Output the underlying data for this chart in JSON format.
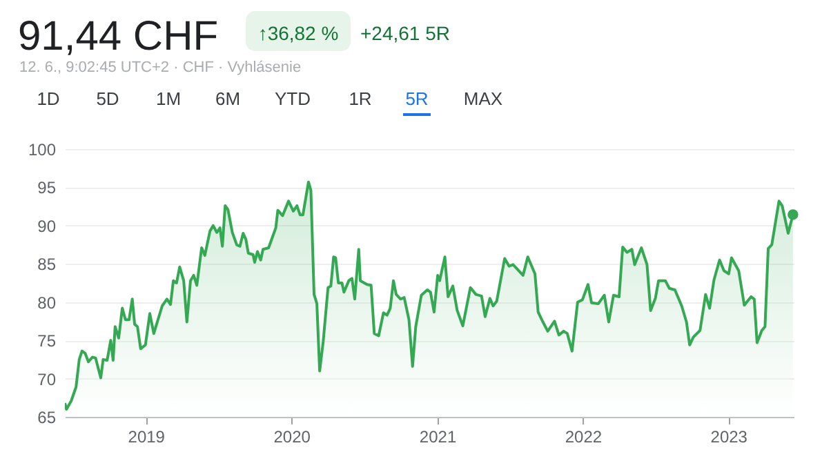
{
  "chart_data": {
    "type": "area",
    "title": "91,44 CHF",
    "annotations": [
      "↑36,82 %",
      "+24,61 5R",
      "12. 6., 9:02:45 UTC+2 · CHF · Vyhlásenie",
      "1D",
      "5D",
      "1M",
      "6M",
      "YTD",
      "1R",
      "5R",
      "MAX"
    ],
    "xlim": [
      "2018-06-12",
      "2023-06-14"
    ],
    "xticks": [
      {
        "value": "2019-01-01",
        "label": "2019"
      },
      {
        "value": "2020-01-01",
        "label": "2020"
      },
      {
        "value": "2021-01-01",
        "label": "2021"
      },
      {
        "value": "2022-01-01",
        "label": "2022"
      },
      {
        "value": "2023-01-01",
        "label": "2023"
      }
    ],
    "ylim": [
      65,
      100
    ],
    "yticks": [
      65,
      70,
      75,
      80,
      85,
      90,
      95,
      100
    ],
    "grid": "y",
    "series": [
      {
        "color": "#34a853",
        "x": [
          "2018-06-12",
          "2018-06-16",
          "2018-06-28",
          "2018-07-10",
          "2018-07-18",
          "2018-07-25",
          "2018-08-02",
          "2018-08-10",
          "2018-08-20",
          "2018-08-28",
          "2018-09-04",
          "2018-09-10",
          "2018-09-16",
          "2018-09-26",
          "2018-10-05",
          "2018-10-11",
          "2018-10-16",
          "2018-10-25",
          "2018-11-03",
          "2018-11-11",
          "2018-11-20",
          "2018-11-28",
          "2018-12-04",
          "2018-12-11",
          "2018-12-19",
          "2018-12-31",
          "2019-01-11",
          "2019-01-21",
          "2019-02-11",
          "2019-02-23",
          "2019-03-04",
          "2019-03-11",
          "2019-03-19",
          "2019-03-27",
          "2019-04-06",
          "2019-04-14",
          "2019-04-23",
          "2019-05-01",
          "2019-05-09",
          "2019-05-21",
          "2019-05-29",
          "2019-06-11",
          "2019-06-19",
          "2019-06-28",
          "2019-07-06",
          "2019-07-12",
          "2019-07-19",
          "2019-07-26",
          "2019-08-06",
          "2019-08-17",
          "2019-08-25",
          "2019-09-02",
          "2019-09-09",
          "2019-09-15",
          "2019-09-27",
          "2019-10-01",
          "2019-10-08",
          "2019-10-16",
          "2019-10-22",
          "2019-11-05",
          "2019-11-23",
          "2019-11-28",
          "2019-12-10",
          "2019-12-25",
          "2020-01-06",
          "2020-01-15",
          "2020-01-23",
          "2020-01-30",
          "2020-02-13",
          "2020-02-19",
          "2020-02-27",
          "2020-03-05",
          "2020-03-12",
          "2020-03-21",
          "2020-04-02",
          "2020-04-09",
          "2020-04-16",
          "2020-04-21",
          "2020-04-28",
          "2020-05-07",
          "2020-05-12",
          "2020-05-24",
          "2020-06-01",
          "2020-06-08",
          "2020-06-18",
          "2020-06-22",
          "2020-07-09",
          "2020-07-19",
          "2020-07-27",
          "2020-08-07",
          "2020-08-19",
          "2020-08-28",
          "2020-09-05",
          "2020-09-13",
          "2020-09-20",
          "2020-10-01",
          "2020-10-10",
          "2020-10-22",
          "2020-10-31",
          "2020-11-08",
          "2020-11-22",
          "2020-12-07",
          "2020-12-15",
          "2020-12-24",
          "2021-01-02",
          "2021-01-07",
          "2021-01-20",
          "2021-01-28",
          "2021-02-09",
          "2021-02-20",
          "2021-03-06",
          "2021-03-25",
          "2021-04-08",
          "2021-04-22",
          "2021-05-01",
          "2021-05-13",
          "2021-05-21",
          "2021-05-30",
          "2021-06-19",
          "2021-06-30",
          "2021-07-10",
          "2021-07-21",
          "2021-08-04",
          "2021-08-16",
          "2021-09-03",
          "2021-09-11",
          "2021-09-23",
          "2021-10-05",
          "2021-10-22",
          "2021-11-02",
          "2021-11-14",
          "2021-11-23",
          "2021-12-05",
          "2021-12-19",
          "2021-12-31",
          "2022-01-14",
          "2022-01-23",
          "2022-02-09",
          "2022-02-24",
          "2022-03-07",
          "2022-03-19",
          "2022-04-02",
          "2022-04-11",
          "2022-04-22",
          "2022-05-04",
          "2022-05-11",
          "2022-05-28",
          "2022-06-11",
          "2022-06-20",
          "2022-07-02",
          "2022-07-10",
          "2022-07-27",
          "2022-08-06",
          "2022-08-20",
          "2022-08-29",
          "2022-09-06",
          "2022-09-18",
          "2022-09-26",
          "2022-10-05",
          "2022-10-22",
          "2022-11-05",
          "2022-11-15",
          "2022-11-26",
          "2022-12-10",
          "2022-12-21",
          "2023-01-02",
          "2023-01-09",
          "2023-01-27",
          "2023-02-10",
          "2023-02-27",
          "2023-03-07",
          "2023-03-14",
          "2023-03-26",
          "2023-04-03",
          "2023-04-11",
          "2023-04-20",
          "2023-05-08",
          "2023-05-16",
          "2023-05-31",
          "2023-06-12"
        ],
        "values": [
          66.8,
          66.0,
          67.1,
          68.9,
          72.5,
          73.6,
          73.3,
          72.2,
          72.8,
          72.7,
          71.3,
          70.1,
          72.5,
          72.4,
          75.0,
          72.4,
          76.8,
          75.3,
          79.2,
          77.7,
          77.7,
          80.4,
          77.1,
          76.8,
          73.9,
          74.4,
          78.5,
          75.9,
          79.5,
          80.4,
          79.7,
          82.8,
          82.5,
          84.6,
          82.8,
          77.4,
          82.8,
          83.5,
          82.2,
          87.1,
          86.1,
          89.3,
          90.0,
          89.1,
          89.7,
          87.3,
          92.6,
          92.1,
          89.1,
          87.5,
          87.3,
          89.0,
          88.2,
          86.4,
          86.2,
          85.2,
          86.6,
          85.5,
          86.9,
          87.1,
          89.7,
          92.0,
          91.3,
          93.2,
          91.9,
          92.6,
          91.4,
          91.4,
          95.7,
          94.6,
          81.0,
          79.8,
          71.0,
          74.9,
          81.9,
          82.1,
          85.9,
          85.8,
          82.5,
          82.5,
          81.3,
          82.8,
          83.1,
          80.4,
          86.9,
          82.8,
          82.3,
          82.2,
          75.9,
          75.6,
          78.6,
          78.3,
          79.2,
          82.8,
          81.0,
          80.4,
          80.6,
          77.7,
          71.6,
          76.8,
          80.9,
          81.6,
          81.3,
          78.7,
          83.5,
          82.8,
          85.9,
          80.7,
          82.1,
          78.9,
          76.9,
          81.9,
          81.0,
          80.8,
          78.1,
          80.5,
          79.5,
          80.1,
          85.7,
          84.7,
          84.9,
          84.3,
          83.5,
          85.9,
          83.7,
          78.7,
          77.4,
          76.2,
          77.5,
          75.7,
          76.2,
          75.9,
          73.6,
          80.0,
          80.3,
          82.3,
          79.9,
          79.8,
          80.9,
          77.4,
          80.9,
          80.7,
          87.2,
          86.5,
          86.9,
          84.9,
          87.1,
          84.9,
          78.9,
          80.5,
          82.8,
          82.8,
          81.8,
          81.6,
          80.5,
          79.5,
          77.4,
          74.4,
          75.4,
          76.3,
          81.0,
          79.2,
          82.9,
          85.5,
          84.1,
          83.7,
          85.8,
          84.1,
          79.6,
          80.7,
          80.4,
          74.7,
          76.3,
          76.8,
          87.0,
          87.5,
          93.2,
          92.6,
          89.0,
          91.44
        ]
      }
    ]
  }
}
